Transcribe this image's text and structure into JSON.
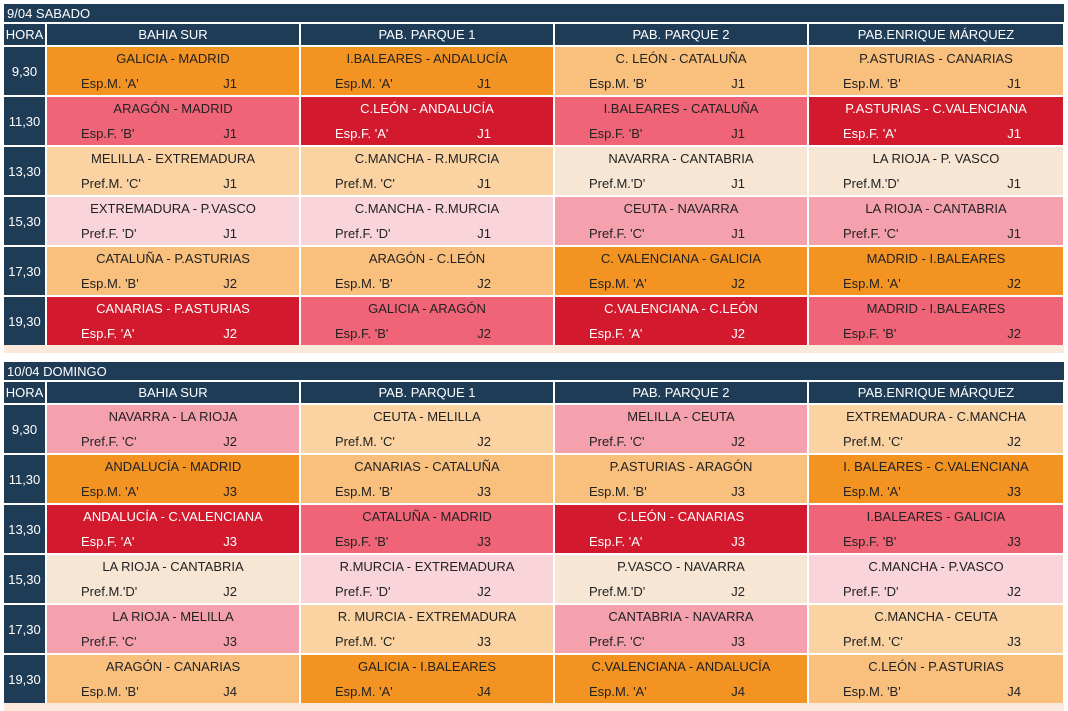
{
  "colors": {
    "header_bg": "#1f3c57",
    "orange": "#f39322",
    "peach": "#f9c07d",
    "lightpeach": "#fbd3a3",
    "cream": "#f7e6d4",
    "red": "#d2192d",
    "rose": "#ef6577",
    "pink": "#f4a1ad",
    "lightpink": "#f9d4da"
  },
  "days": [
    {
      "title": "9/04 SABADO",
      "hora_label": "HORA",
      "venues": [
        "BAHIA SUR",
        "PAB. PARQUE 1",
        "PAB. PARQUE 2",
        "PAB.ENRIQUE MÁRQUEZ"
      ],
      "slots": [
        {
          "time": "9,30",
          "matches": [
            {
              "teams": "GALICIA - MADRID",
              "cat": "Esp.M. 'A'",
              "round": "J1",
              "color": "orange"
            },
            {
              "teams": "I.BALEARES - ANDALUCÍA",
              "cat": "Esp.M. 'A'",
              "round": "J1",
              "color": "orange"
            },
            {
              "teams": "C. LEÓN - CATALUÑA",
              "cat": "Esp.M. 'B'",
              "round": "J1",
              "color": "peach"
            },
            {
              "teams": "P.ASTURIAS - CANARIAS",
              "cat": "Esp.M. 'B'",
              "round": "J1",
              "color": "peach"
            }
          ]
        },
        {
          "time": "11,30",
          "matches": [
            {
              "teams": "ARAGÓN - MADRID",
              "cat": "Esp.F. 'B'",
              "round": "J1",
              "color": "rose"
            },
            {
              "teams": "C.LEÓN - ANDALUCÍA",
              "cat": "Esp.F. 'A'",
              "round": "J1",
              "color": "red"
            },
            {
              "teams": "I.BALEARES - CATALUÑA",
              "cat": "Esp.F. 'B'",
              "round": "J1",
              "color": "rose"
            },
            {
              "teams": "P.ASTURIAS - C.VALENCIANA",
              "cat": "Esp.F. 'A'",
              "round": "J1",
              "color": "red"
            }
          ]
        },
        {
          "time": "13,30",
          "matches": [
            {
              "teams": "MELILLA - EXTREMADURA",
              "cat": "Pref.M. 'C'",
              "round": "J1",
              "color": "lightpeach"
            },
            {
              "teams": "C.MANCHA - R.MURCIA",
              "cat": "Pref.M. 'C'",
              "round": "J1",
              "color": "lightpeach"
            },
            {
              "teams": "NAVARRA - CANTABRIA",
              "cat": "Pref.M.'D'",
              "round": "J1",
              "color": "cream"
            },
            {
              "teams": "LA RIOJA - P. VASCO",
              "cat": "Pref.M.'D'",
              "round": "J1",
              "color": "cream"
            }
          ]
        },
        {
          "time": "15,30",
          "matches": [
            {
              "teams": "EXTREMADURA - P.VASCO",
              "cat": "Pref.F. 'D'",
              "round": "J1",
              "color": "lightpink"
            },
            {
              "teams": "C.MANCHA - R.MURCIA",
              "cat": "Pref.F. 'D'",
              "round": "J1",
              "color": "lightpink"
            },
            {
              "teams": "CEUTA - NAVARRA",
              "cat": "Pref.F. 'C'",
              "round": "J1",
              "color": "pink"
            },
            {
              "teams": "LA RIOJA - CANTABRIA",
              "cat": "Pref.F. 'C'",
              "round": "J1",
              "color": "pink"
            }
          ]
        },
        {
          "time": "17,30",
          "matches": [
            {
              "teams": "CATALUÑA - P.ASTURIAS",
              "cat": "Esp.M. 'B'",
              "round": "J2",
              "color": "peach"
            },
            {
              "teams": "ARAGÓN - C.LEÓN",
              "cat": "Esp.M. 'B'",
              "round": "J2",
              "color": "peach"
            },
            {
              "teams": "C. VALENCIANA - GALICIA",
              "cat": "Esp.M. 'A'",
              "round": "J2",
              "color": "orange"
            },
            {
              "teams": "MADRID - I.BALEARES",
              "cat": "Esp.M. 'A'",
              "round": "J2",
              "color": "orange"
            }
          ]
        },
        {
          "time": "19,30",
          "matches": [
            {
              "teams": "CANARIAS - P.ASTURIAS",
              "cat": "Esp.F. 'A'",
              "round": "J2",
              "color": "red"
            },
            {
              "teams": "GALICIA - ARAGÓN",
              "cat": "Esp.F. 'B'",
              "round": "J2",
              "color": "rose"
            },
            {
              "teams": "C.VALENCIANA - C.LEÓN",
              "cat": "Esp.F. 'A'",
              "round": "J2",
              "color": "red"
            },
            {
              "teams": "MADRID - I.BALEARES",
              "cat": "Esp.F. 'B'",
              "round": "J2",
              "color": "rose"
            }
          ]
        }
      ]
    },
    {
      "title": "10/04 DOMINGO",
      "hora_label": "HORA",
      "venues": [
        "BAHIA SUR",
        "PAB. PARQUE 1",
        "PAB. PARQUE 2",
        "PAB.ENRIQUE MÁRQUEZ"
      ],
      "slots": [
        {
          "time": "9,30",
          "matches": [
            {
              "teams": "NAVARRA - LA RIOJA",
              "cat": "Pref.F. 'C'",
              "round": "J2",
              "color": "pink"
            },
            {
              "teams": "CEUTA - MELILLA",
              "cat": "Pref.M. 'C'",
              "round": "J2",
              "color": "lightpeach"
            },
            {
              "teams": "MELILLA - CEUTA",
              "cat": "Pref.F. 'C'",
              "round": "J2",
              "color": "pink"
            },
            {
              "teams": "EXTREMADURA - C.MANCHA",
              "cat": "Pref.M. 'C'",
              "round": "J2",
              "color": "lightpeach"
            }
          ]
        },
        {
          "time": "11,30",
          "matches": [
            {
              "teams": "ANDALUCÍA - MADRID",
              "cat": "Esp.M. 'A'",
              "round": "J3",
              "color": "orange"
            },
            {
              "teams": "CANARIAS - CATALUÑA",
              "cat": "Esp.M. 'B'",
              "round": "J3",
              "color": "peach"
            },
            {
              "teams": "P.ASTURIAS - ARAGÓN",
              "cat": "Esp.M. 'B'",
              "round": "J3",
              "color": "peach"
            },
            {
              "teams": "I. BALEARES - C.VALENCIANA",
              "cat": "Esp.M. 'A'",
              "round": "J3",
              "color": "orange"
            }
          ]
        },
        {
          "time": "13,30",
          "matches": [
            {
              "teams": "ANDALUCÍA - C.VALENCIANA",
              "cat": "Esp.F. 'A'",
              "round": "J3",
              "color": "red"
            },
            {
              "teams": "CATALUÑA - MADRID",
              "cat": "Esp.F. 'B'",
              "round": "J3",
              "color": "rose"
            },
            {
              "teams": "C.LEÓN - CANARIAS",
              "cat": "Esp.F. 'A'",
              "round": "J3",
              "color": "red"
            },
            {
              "teams": "I.BALEARES - GALICIA",
              "cat": "Esp.F. 'B'",
              "round": "J3",
              "color": "rose"
            }
          ]
        },
        {
          "time": "15,30",
          "matches": [
            {
              "teams": "LA RIOJA - CANTABRIA",
              "cat": "Pref.M.'D'",
              "round": "J2",
              "color": "cream"
            },
            {
              "teams": "R.MURCIA - EXTREMADURA",
              "cat": "Pref.F. 'D'",
              "round": "J2",
              "color": "lightpink"
            },
            {
              "teams": "P.VASCO - NAVARRA",
              "cat": "Pref.M.'D'",
              "round": "J2",
              "color": "cream"
            },
            {
              "teams": "C.MANCHA - P.VASCO",
              "cat": "Pref.F. 'D'",
              "round": "J2",
              "color": "lightpink"
            }
          ]
        },
        {
          "time": "17,30",
          "matches": [
            {
              "teams": "LA RIOJA - MELILLA",
              "cat": "Pref.F. 'C'",
              "round": "J3",
              "color": "pink"
            },
            {
              "teams": "R. MURCIA - EXTREMADURA",
              "cat": "Pref.M. 'C'",
              "round": "J3",
              "color": "lightpeach"
            },
            {
              "teams": "CANTABRIA - NAVARRA",
              "cat": "Pref.F. 'C'",
              "round": "J3",
              "color": "pink"
            },
            {
              "teams": "C.MANCHA - CEUTA",
              "cat": "Pref.M. 'C'",
              "round": "J3",
              "color": "lightpeach"
            }
          ]
        },
        {
          "time": "19,30",
          "matches": [
            {
              "teams": "ARAGÓN - CANARIAS",
              "cat": "Esp.M. 'B'",
              "round": "J4",
              "color": "peach"
            },
            {
              "teams": "GALICIA - I.BALEARES",
              "cat": "Esp.M. 'A'",
              "round": "J4",
              "color": "orange"
            },
            {
              "teams": "C.VALENCIANA - ANDALUCÍA",
              "cat": "Esp.M. 'A'",
              "round": "J4",
              "color": "orange"
            },
            {
              "teams": "C.LEÓN - P.ASTURIAS",
              "cat": "Esp.M. 'B'",
              "round": "J4",
              "color": "peach"
            }
          ]
        }
      ]
    }
  ]
}
